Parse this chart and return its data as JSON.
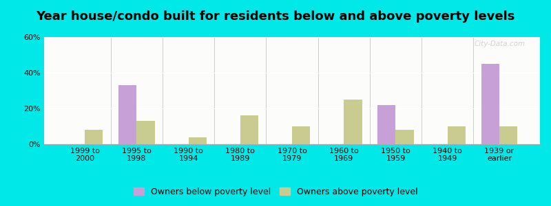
{
  "title": "Year house/condo built for residents below and above poverty levels",
  "categories": [
    "1999 to\n2000",
    "1995 to\n1998",
    "1990 to\n1994",
    "1980 to\n1989",
    "1970 to\n1979",
    "1960 to\n1969",
    "1950 to\n1959",
    "1940 to\n1949",
    "1939 or\nearlier"
  ],
  "below_poverty": [
    0,
    33,
    0,
    0,
    0,
    0,
    22,
    0,
    45
  ],
  "above_poverty": [
    8,
    13,
    4,
    16,
    10,
    25,
    8,
    10,
    10
  ],
  "below_color": "#c8a0d8",
  "above_color": "#c8cc90",
  "ylim": [
    0,
    60
  ],
  "yticks": [
    0,
    20,
    40,
    60
  ],
  "legend_below": "Owners below poverty level",
  "legend_above": "Owners above poverty level",
  "outer_bg": "#00e8e8",
  "title_fontsize": 13,
  "tick_fontsize": 8,
  "legend_fontsize": 9
}
